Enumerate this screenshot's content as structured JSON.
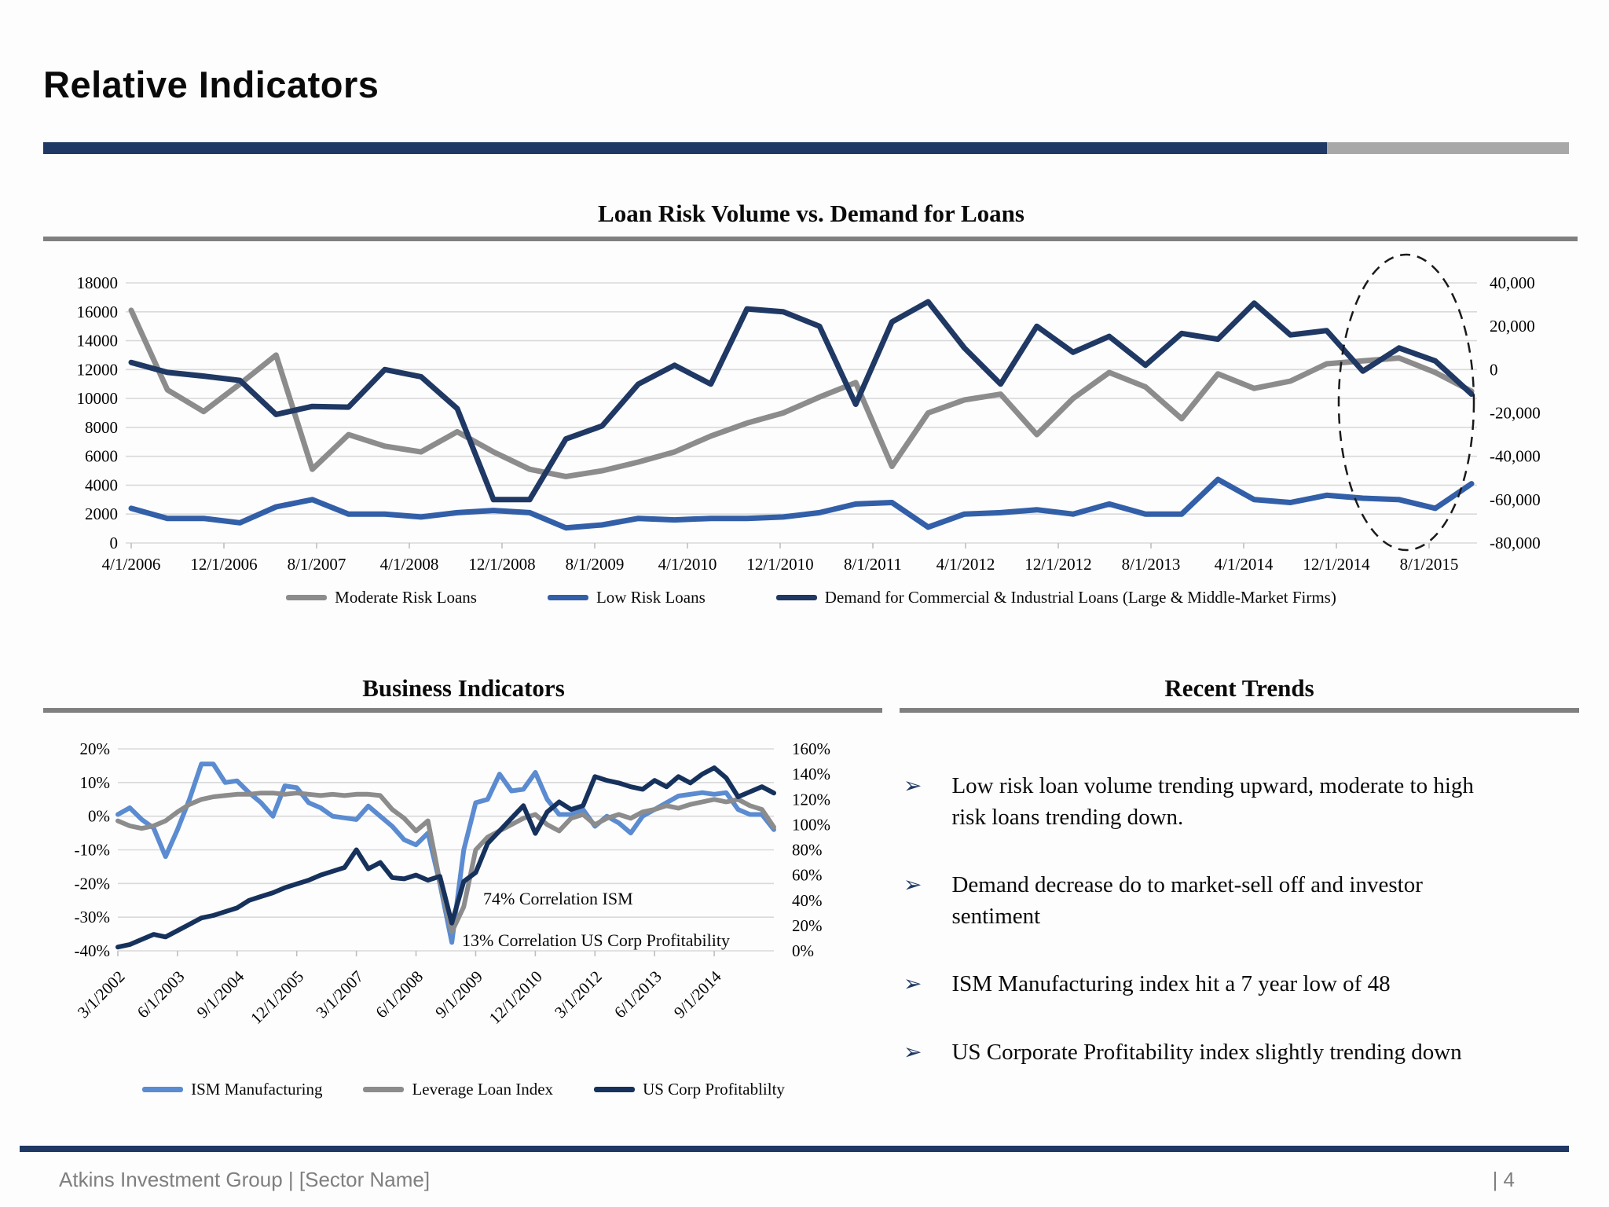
{
  "header": {
    "title": "Relative Indicators"
  },
  "recent_trends": {
    "title": "Recent Trends",
    "bullet_glyph": "➢",
    "bullets": [
      "Low risk loan volume trending upward, moderate to high risk loans trending down.",
      "Demand decrease do to market-sell off and investor sentiment",
      "ISM Manufacturing index hit a 7 year low of 48",
      "US Corporate Profitability index slightly trending down"
    ]
  },
  "footer": {
    "left": "Atkins Investment Group  |  [Sector Name]",
    "page": "| 4"
  },
  "colors": {
    "accent_navy": "#1F3864",
    "accent_gray": "#A8A8A8",
    "gridline": "#D9D9D9"
  },
  "chart_data": [
    {
      "type": "line",
      "title": "Loan Risk Volume vs. Demand for Loans",
      "legend_position": "bottom",
      "grid": true,
      "highlight": {
        "type": "dashed-ellipse",
        "region": "8/1/2015 recent period"
      },
      "x_labels": [
        "4/1/2006",
        "12/1/2006",
        "8/1/2007",
        "4/1/2008",
        "12/1/2008",
        "8/1/2009",
        "4/1/2010",
        "12/1/2010",
        "8/1/2011",
        "4/1/2012",
        "12/1/2012",
        "8/1/2013",
        "4/1/2014",
        "12/1/2014",
        "8/1/2015"
      ],
      "left_axis": {
        "min": 0,
        "max": 18000,
        "step": 2000,
        "tick_labels": [
          "18000",
          "16000",
          "14000",
          "12000",
          "10000",
          "8000",
          "6000",
          "4000",
          "2000",
          "0"
        ]
      },
      "right_axis": {
        "min": -80000,
        "max": 40000,
        "step": 20000,
        "tick_labels": [
          "40,000",
          "20,000",
          "0",
          "-20,000",
          "-40,000",
          "-60,000",
          "-80,000"
        ]
      },
      "series": [
        {
          "name": "Moderate Risk Loans",
          "color": "#8C8C8C",
          "axis": "left",
          "values": [
            16100,
            10600,
            9100,
            11000,
            13000,
            5100,
            7500,
            6700,
            6300,
            7700,
            6300,
            5100,
            4600,
            5000,
            5600,
            6300,
            7400,
            8300,
            9000,
            10100,
            11100,
            5300,
            9000,
            9900,
            10300,
            7500,
            10000,
            11800,
            10800,
            8600,
            11700,
            10700,
            11200,
            12400,
            12600,
            12800,
            11800,
            10500
          ]
        },
        {
          "name": "Low Risk Loans",
          "color": "#325FA8",
          "axis": "left",
          "values": [
            2400,
            1700,
            1700,
            1400,
            2500,
            3000,
            2000,
            2000,
            1800,
            2100,
            2250,
            2100,
            1050,
            1250,
            1700,
            1600,
            1700,
            1700,
            1800,
            2100,
            2700,
            2800,
            1100,
            2000,
            2100,
            2300,
            2000,
            2700,
            2000,
            2000,
            4400,
            3000,
            2800,
            3300,
            3100,
            3000,
            2400,
            4100
          ]
        },
        {
          "name": "Demand for Commercial & Industrial Loans (Large & Middle-Market Firms)",
          "color": "#1F3864",
          "axis": "right",
          "values": [
            3300,
            -1300,
            -3000,
            -5000,
            -20700,
            -17000,
            -17300,
            0,
            -3300,
            -18000,
            -60000,
            -60000,
            -32000,
            -26000,
            -6700,
            2000,
            -6700,
            28000,
            26700,
            20000,
            -16000,
            22000,
            31300,
            10000,
            -6700,
            20000,
            8000,
            15300,
            2000,
            16700,
            14000,
            30700,
            16000,
            18000,
            -700,
            10000,
            4000,
            -11300
          ]
        }
      ]
    },
    {
      "type": "line",
      "title": "Business Indicators",
      "legend_position": "bottom",
      "grid": true,
      "annotations": [
        "74% Correlation ISM",
        "13% Correlation US Corp Profitability"
      ],
      "x_labels": [
        "3/1/2002",
        "6/1/2003",
        "9/1/2004",
        "12/1/2005",
        "3/1/2007",
        "6/1/2008",
        "9/1/2009",
        "12/1/2010",
        "3/1/2012",
        "6/1/2013",
        "9/1/2014"
      ],
      "left_axis": {
        "min": -40,
        "max": 20,
        "step": 10,
        "tick_labels": [
          "20%",
          "10%",
          "0%",
          "-10%",
          "-20%",
          "-30%",
          "-40%"
        ]
      },
      "right_axis": {
        "min": 0,
        "max": 160,
        "step": 20,
        "tick_labels": [
          "160%",
          "140%",
          "120%",
          "100%",
          "80%",
          "60%",
          "40%",
          "20%",
          "0%"
        ]
      },
      "series": [
        {
          "name": "ISM Manufacturing",
          "color": "#5B8BD0",
          "axis": "left",
          "values": [
            0.5,
            2.5,
            -1,
            -3.5,
            -12,
            -4,
            5,
            15.5,
            15.5,
            10,
            10.5,
            7,
            4,
            0,
            9,
            8.5,
            4,
            2.5,
            0,
            -0.5,
            -1,
            3,
            0,
            -3,
            -7,
            -8.5,
            -5,
            -20,
            -37.5,
            -10,
            4,
            5,
            12.5,
            7.5,
            8,
            13,
            5,
            0.5,
            0.5,
            2,
            -3,
            0,
            -2,
            -5,
            0,
            2,
            4,
            6,
            6.5,
            7,
            6.5,
            7,
            2,
            0.5,
            0.5,
            -4
          ]
        },
        {
          "name": "Leverage Loan Index",
          "color": "#8C8C8C",
          "axis": "right",
          "values": [
            103,
            99,
            97,
            99,
            103,
            110,
            116,
            120,
            122,
            123,
            124,
            124,
            125,
            125,
            124,
            125,
            124,
            123,
            124,
            123,
            124,
            124,
            123,
            112,
            105,
            95,
            103,
            55,
            15,
            35,
            80,
            90,
            95,
            100,
            105,
            108,
            100,
            95,
            105,
            108,
            100,
            105,
            108,
            105,
            110,
            112,
            115,
            113,
            116,
            118,
            120,
            118,
            120,
            115,
            112,
            98
          ]
        },
        {
          "name": "US Corp Profitablilty",
          "color": "#16325C",
          "axis": "right",
          "values": [
            3,
            5,
            9,
            13,
            11,
            16,
            21,
            26,
            28,
            31,
            34,
            40,
            43,
            46,
            50,
            53,
            56,
            60,
            63,
            66,
            80,
            65,
            70,
            58,
            57,
            60,
            56,
            59,
            22,
            55,
            62,
            85,
            95,
            105,
            115,
            93,
            110,
            118,
            112,
            115,
            138,
            135,
            133,
            130,
            128,
            135,
            130,
            138,
            133,
            140,
            145,
            137,
            122,
            126,
            130,
            125
          ]
        }
      ]
    }
  ]
}
